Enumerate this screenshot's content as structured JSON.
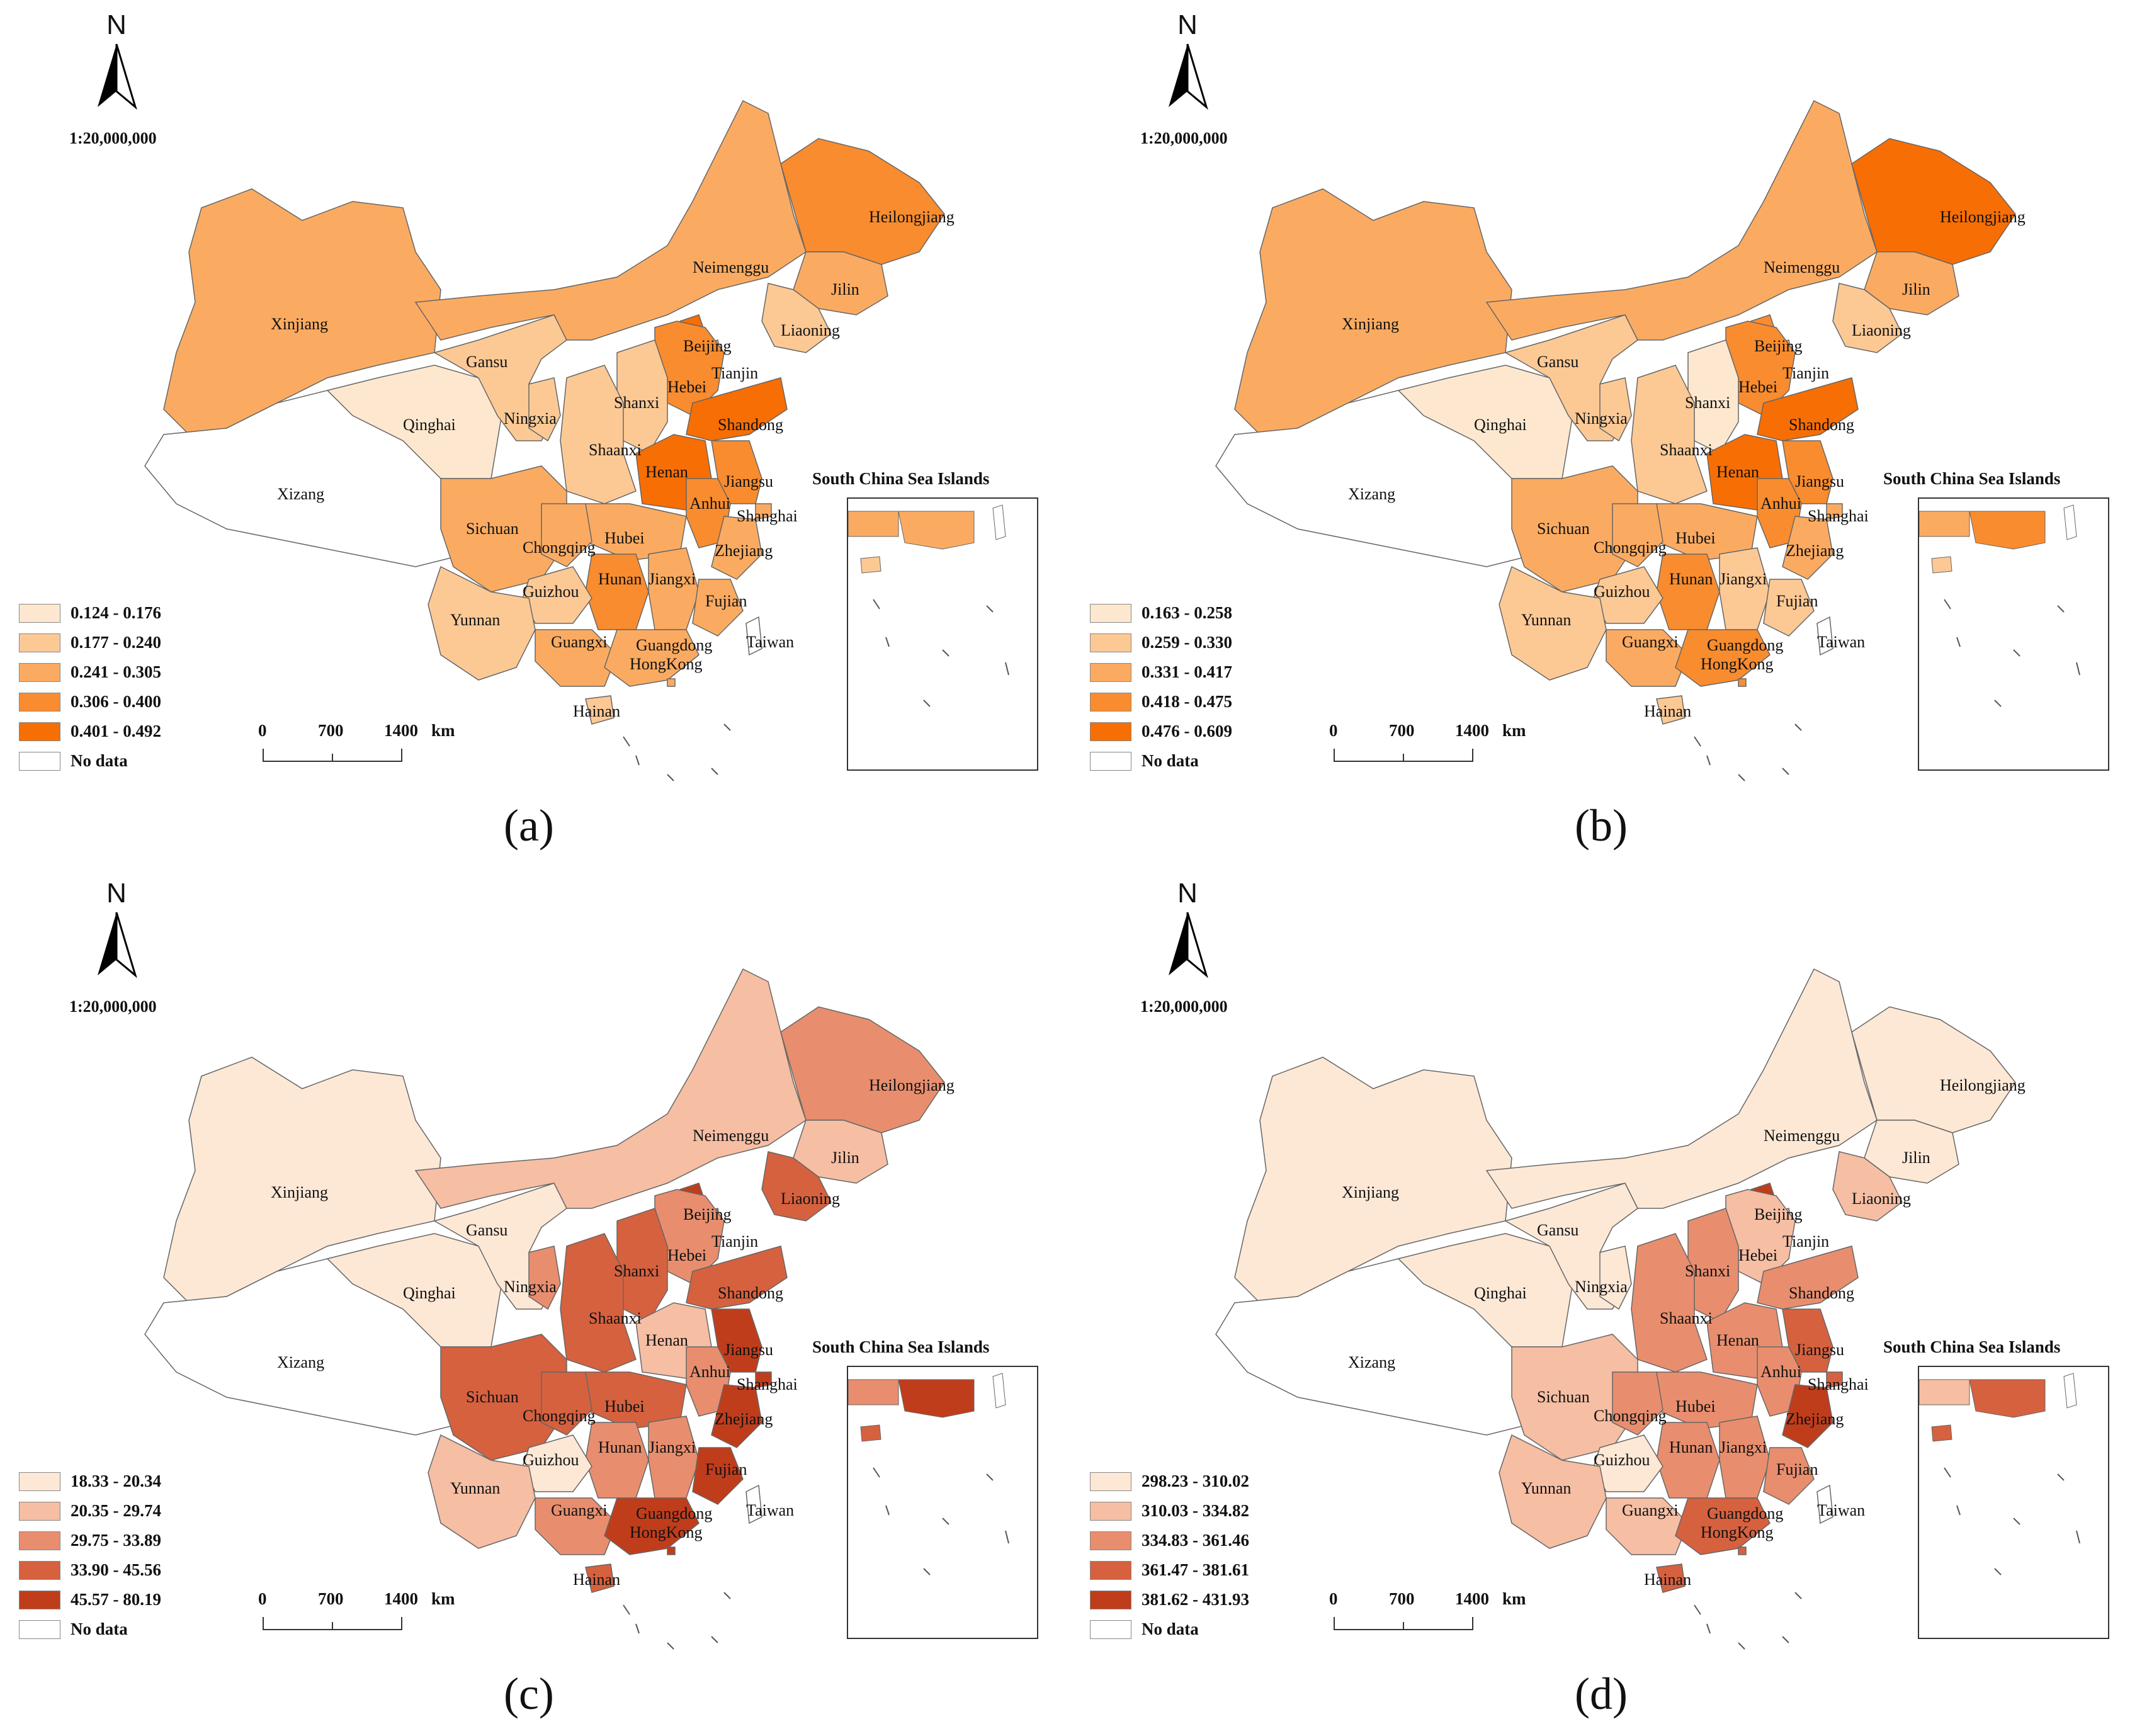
{
  "panels": [
    {
      "caption": "(a)",
      "north": "N",
      "scale_ratio": "1:20,000,000",
      "inset_title": "South China Sea Islands",
      "scale_labels": [
        "0",
        "700",
        "1400",
        "km"
      ],
      "legend": [
        {
          "label": "0.124 - 0.176",
          "color": "#fde8cf"
        },
        {
          "label": "0.177 - 0.240",
          "color": "#fcc995"
        },
        {
          "label": "0.241 - 0.305",
          "color": "#fbab61"
        },
        {
          "label": "0.306 - 0.400",
          "color": "#f98c2e"
        },
        {
          "label": "0.401 - 0.492",
          "color": "#f76e04"
        },
        {
          "label": "No data",
          "color": "#ffffff"
        }
      ],
      "provinces": {
        "Xinjiang": 2,
        "Xizang": 5,
        "Qinghai": 0,
        "Gansu": 1,
        "Neimenggu": 2,
        "Heilongjiang": 3,
        "Jilin": 2,
        "Liaoning": 1,
        "Beijing": 4,
        "Tianjin": 2,
        "Hebei": 3,
        "Shanxi": 1,
        "Shaanxi": 1,
        "Ningxia": 1,
        "Shandong": 4,
        "Henan": 4,
        "Jiangsu": 3,
        "Anhui": 3,
        "Shanghai": 2,
        "Hubei": 2,
        "Sichuan": 2,
        "Chongqing": 2,
        "Hunan": 3,
        "Jiangxi": 2,
        "Zhejiang": 2,
        "Fujian": 2,
        "Guizhou": 1,
        "Yunnan": 1,
        "Guangxi": 2,
        "Guangdong": 2,
        "HongKong": 2,
        "Taiwan": 5,
        "Hainan": 1
      }
    },
    {
      "caption": "(b)",
      "north": "N",
      "scale_ratio": "1:20,000,000",
      "inset_title": "South China Sea Islands",
      "scale_labels": [
        "0",
        "700",
        "1400",
        "km"
      ],
      "legend": [
        {
          "label": "0.163 - 0.258",
          "color": "#fde8cf"
        },
        {
          "label": "0.259 - 0.330",
          "color": "#fcc995"
        },
        {
          "label": "0.331 - 0.417",
          "color": "#fbab61"
        },
        {
          "label": "0.418 - 0.475",
          "color": "#f98c2e"
        },
        {
          "label": "0.476 - 0.609",
          "color": "#f76e04"
        },
        {
          "label": "No data",
          "color": "#ffffff"
        }
      ],
      "provinces": {
        "Xinjiang": 2,
        "Xizang": 5,
        "Qinghai": 0,
        "Gansu": 1,
        "Neimenggu": 2,
        "Heilongjiang": 4,
        "Jilin": 2,
        "Liaoning": 1,
        "Beijing": 3,
        "Tianjin": 2,
        "Hebei": 3,
        "Shanxi": 0,
        "Shaanxi": 1,
        "Ningxia": 1,
        "Shandong": 4,
        "Henan": 4,
        "Jiangsu": 3,
        "Anhui": 3,
        "Shanghai": 2,
        "Hubei": 2,
        "Sichuan": 2,
        "Chongqing": 2,
        "Hunan": 3,
        "Jiangxi": 1,
        "Zhejiang": 2,
        "Fujian": 1,
        "Guizhou": 1,
        "Yunnan": 1,
        "Guangxi": 2,
        "Guangdong": 3,
        "HongKong": 3,
        "Taiwan": 5,
        "Hainan": 1
      }
    },
    {
      "caption": "(c)",
      "north": "N",
      "scale_ratio": "1:20,000,000",
      "inset_title": "South China Sea Islands",
      "scale_labels": [
        "0",
        "700",
        "1400",
        "km"
      ],
      "legend": [
        {
          "label": "18.33 - 20.34",
          "color": "#fde8d6"
        },
        {
          "label": "20.35 - 29.74",
          "color": "#f6bea3"
        },
        {
          "label": "29.75 - 33.89",
          "color": "#e88e6e"
        },
        {
          "label": "33.90 - 45.56",
          "color": "#d6613f"
        },
        {
          "label": "45.57 - 80.19",
          "color": "#c03d1c"
        },
        {
          "label": "No data",
          "color": "#ffffff"
        }
      ],
      "provinces": {
        "Xinjiang": 0,
        "Xizang": 5,
        "Qinghai": 0,
        "Gansu": 0,
        "Neimenggu": 1,
        "Heilongjiang": 2,
        "Jilin": 1,
        "Liaoning": 3,
        "Beijing": 4,
        "Tianjin": 3,
        "Hebei": 2,
        "Shanxi": 3,
        "Shaanxi": 3,
        "Ningxia": 2,
        "Shandong": 3,
        "Henan": 1,
        "Jiangsu": 4,
        "Anhui": 2,
        "Shanghai": 4,
        "Hubei": 3,
        "Sichuan": 3,
        "Chongqing": 3,
        "Hunan": 2,
        "Jiangxi": 2,
        "Zhejiang": 4,
        "Fujian": 4,
        "Guizhou": 0,
        "Yunnan": 1,
        "Guangxi": 2,
        "Guangdong": 4,
        "HongKong": 4,
        "Taiwan": 5,
        "Hainan": 3
      }
    },
    {
      "caption": "(d)",
      "north": "N",
      "scale_ratio": "1:20,000,000",
      "inset_title": "South China Sea Islands",
      "scale_labels": [
        "0",
        "700",
        "1400",
        "km"
      ],
      "legend": [
        {
          "label": "298.23 - 310.02",
          "color": "#fde8d6"
        },
        {
          "label": "310.03 - 334.82",
          "color": "#f6bea3"
        },
        {
          "label": "334.83 - 361.46",
          "color": "#e88e6e"
        },
        {
          "label": "361.47 - 381.61",
          "color": "#d6613f"
        },
        {
          "label": "381.62 - 431.93",
          "color": "#c03d1c"
        },
        {
          "label": "No data",
          "color": "#ffffff"
        }
      ],
      "provinces": {
        "Xinjiang": 0,
        "Xizang": 5,
        "Qinghai": 0,
        "Gansu": 0,
        "Neimenggu": 0,
        "Heilongjiang": 0,
        "Jilin": 0,
        "Liaoning": 1,
        "Beijing": 4,
        "Tianjin": 1,
        "Hebei": 1,
        "Shanxi": 2,
        "Shaanxi": 2,
        "Ningxia": 0,
        "Shandong": 2,
        "Henan": 2,
        "Jiangsu": 3,
        "Anhui": 2,
        "Shanghai": 3,
        "Hubei": 2,
        "Sichuan": 1,
        "Chongqing": 2,
        "Hunan": 2,
        "Jiangxi": 2,
        "Zhejiang": 4,
        "Fujian": 2,
        "Guizhou": 0,
        "Yunnan": 1,
        "Guangxi": 1,
        "Guangdong": 3,
        "HongKong": 3,
        "Taiwan": 5,
        "Hainan": 3
      }
    }
  ]
}
